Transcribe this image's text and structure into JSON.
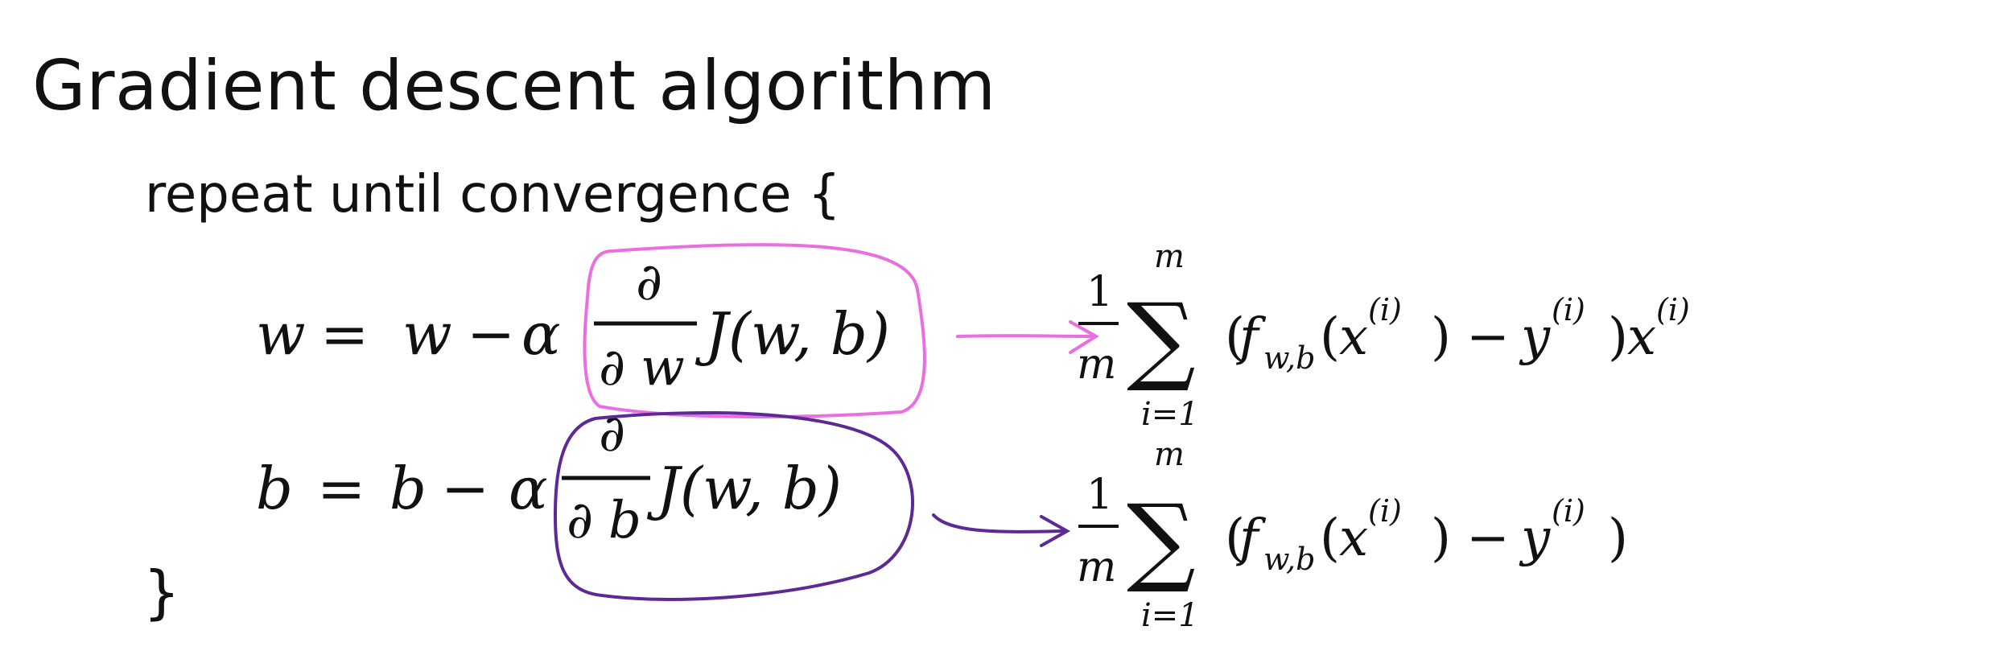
{
  "title": "Gradient descent algorithm",
  "repeat_text": "repeat until convergence {",
  "closing_brace": "}",
  "update_w": {
    "lhs": "w",
    "eq": "=",
    "rhs_var": "w",
    "minus": "−",
    "alpha": "α",
    "partial": "∂",
    "denom_var": "w",
    "cost": "J(w, b)"
  },
  "update_b": {
    "lhs": "b",
    "eq": "=",
    "rhs_var": "b",
    "minus": "−",
    "alpha": "α",
    "partial": "∂",
    "denom_var": "b",
    "cost": "J(w, b)"
  },
  "derivative_w": {
    "frac_num": "1",
    "frac_den": "m",
    "sum_symbol": "∑",
    "sum_upper": "m",
    "sum_lower": "i=1",
    "f_name": "f",
    "f_subscript": "w,b",
    "x_term": "x",
    "superscript": "(i)",
    "minus": "−",
    "y_term": "y",
    "tail_var": "x"
  },
  "derivative_b": {
    "frac_num": "1",
    "frac_den": "m",
    "sum_symbol": "∑",
    "sum_upper": "m",
    "sum_lower": "i=1",
    "f_name": "f",
    "f_subscript": "w,b",
    "x_term": "x",
    "superscript": "(i)",
    "minus": "−",
    "y_term": "y"
  },
  "colors": {
    "text": "#111111",
    "magenta_annotation": "#e96fe0",
    "purple_annotation": "#5b2a95"
  }
}
